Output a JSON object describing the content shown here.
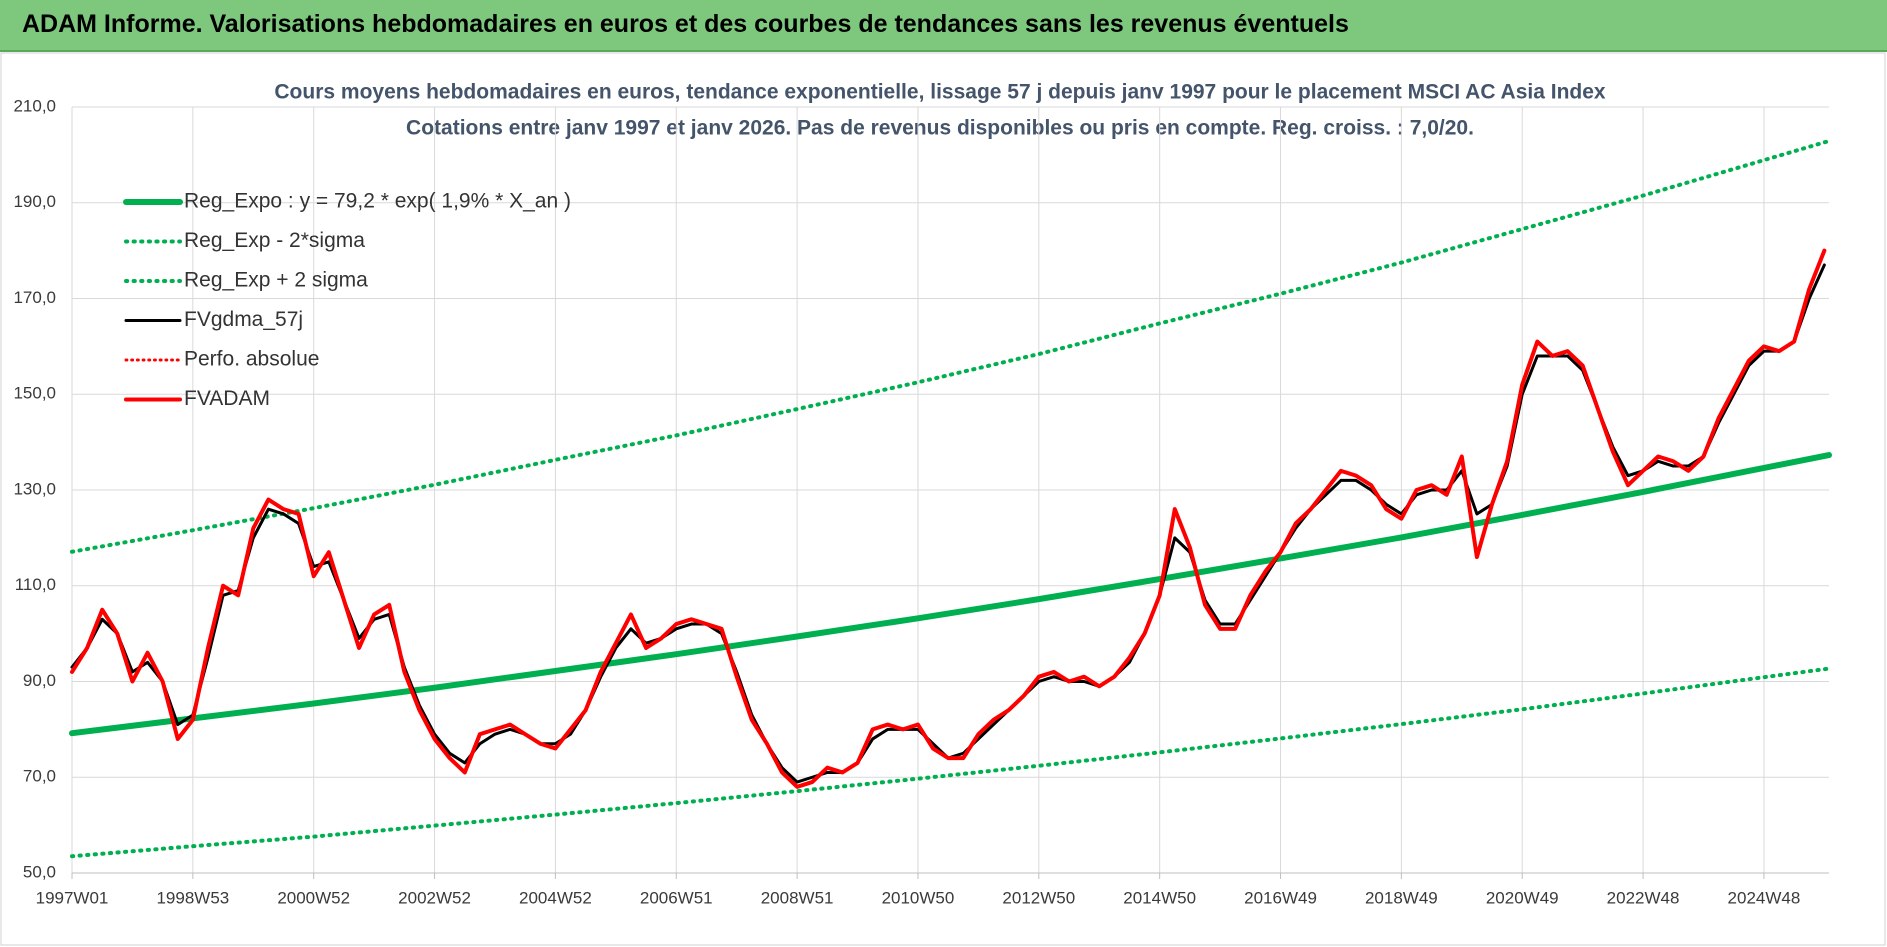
{
  "header": {
    "title": "ADAM Informe. Valorisations hebdomadaires en euros et des courbes de tendances sans les revenus éventuels"
  },
  "chart_data": {
    "type": "line",
    "title": "Cours moyens hebdomadaires en euros, tendance exponentielle, lissage 57 j depuis janv 1997 pour le placement MSCI AC Asia Index",
    "subtitle": "Cotations entre janv 1997 et janv 2026. Pas de revenus disponibles ou pris en compte. Reg. croiss. : 7,0/20.",
    "legend": "top-left",
    "grid": true,
    "xlim": [
      0,
      1512
    ],
    "xticks": [
      {
        "value": 0,
        "label": "1997W01"
      },
      {
        "value": 104,
        "label": "1998W53"
      },
      {
        "value": 208,
        "label": "2000W52"
      },
      {
        "value": 312,
        "label": "2002W52"
      },
      {
        "value": 416,
        "label": "2004W52"
      },
      {
        "value": 520,
        "label": "2006W51"
      },
      {
        "value": 624,
        "label": "2008W51"
      },
      {
        "value": 728,
        "label": "2010W50"
      },
      {
        "value": 832,
        "label": "2012W50"
      },
      {
        "value": 936,
        "label": "2014W50"
      },
      {
        "value": 1040,
        "label": "2016W49"
      },
      {
        "value": 1144,
        "label": "2018W49"
      },
      {
        "value": 1248,
        "label": "2020W49"
      },
      {
        "value": 1352,
        "label": "2022W48"
      },
      {
        "value": 1456,
        "label": "2024W48"
      }
    ],
    "ylim": [
      50,
      210
    ],
    "yticks": [
      {
        "value": 50,
        "label": "50,0"
      },
      {
        "value": 70,
        "label": "70,0"
      },
      {
        "value": 90,
        "label": "90,0"
      },
      {
        "value": 110,
        "label": "110,0"
      },
      {
        "value": 130,
        "label": "130,0"
      },
      {
        "value": 150,
        "label": "150,0"
      },
      {
        "value": 170,
        "label": "170,0"
      },
      {
        "value": 190,
        "label": "190,0"
      },
      {
        "value": 210,
        "label": "210,0"
      }
    ],
    "x": [
      0,
      13,
      26,
      39,
      52,
      65,
      78,
      91,
      104,
      117,
      130,
      143,
      156,
      169,
      182,
      195,
      208,
      221,
      234,
      247,
      260,
      273,
      286,
      299,
      312,
      325,
      338,
      351,
      364,
      377,
      390,
      403,
      416,
      429,
      442,
      455,
      468,
      481,
      494,
      507,
      520,
      533,
      546,
      559,
      572,
      585,
      598,
      611,
      624,
      637,
      650,
      663,
      676,
      689,
      702,
      715,
      728,
      741,
      754,
      767,
      780,
      793,
      806,
      819,
      832,
      845,
      858,
      871,
      884,
      897,
      910,
      923,
      936,
      949,
      962,
      975,
      988,
      1001,
      1014,
      1027,
      1040,
      1053,
      1066,
      1079,
      1092,
      1105,
      1118,
      1131,
      1144,
      1157,
      1170,
      1183,
      1196,
      1209,
      1222,
      1235,
      1248,
      1261,
      1274,
      1287,
      1300,
      1313,
      1326,
      1339,
      1352,
      1365,
      1378,
      1391,
      1404,
      1417,
      1430,
      1443,
      1456,
      1469,
      1482,
      1495,
      1508
    ],
    "series": [
      {
        "name": "Reg_Expo : y = 79,2 * exp( 1,9% *  X_an )",
        "color": "#00b050",
        "style": "solid",
        "width": 6,
        "x": [
          0,
          104,
          208,
          312,
          416,
          520,
          624,
          728,
          832,
          936,
          1040,
          1144,
          1248,
          1352,
          1456,
          1512
        ],
        "values": [
          79.2,
          82.3,
          85.4,
          88.7,
          92.2,
          95.7,
          99.4,
          103.2,
          107.2,
          111.4,
          115.7,
          120.1,
          124.8,
          129.6,
          134.6,
          137.3
        ]
      },
      {
        "name": "Reg_Exp - 2*sigma",
        "color": "#00b050",
        "style": "dotted",
        "width": 4,
        "x": [
          0,
          104,
          208,
          312,
          416,
          520,
          624,
          728,
          832,
          936,
          1040,
          1144,
          1248,
          1352,
          1456,
          1512
        ],
        "values": [
          53.5,
          55.6,
          57.6,
          59.9,
          62.2,
          64.6,
          67.1,
          69.7,
          72.4,
          75.2,
          78.1,
          81.1,
          84.2,
          87.5,
          90.9,
          92.7
        ]
      },
      {
        "name": "Reg_Exp + 2 sigma",
        "color": "#00b050",
        "style": "dotted",
        "width": 4,
        "x": [
          0,
          104,
          208,
          312,
          416,
          520,
          624,
          728,
          832,
          936,
          1040,
          1144,
          1248,
          1352,
          1456,
          1512
        ],
        "values": [
          117.1,
          121.6,
          126.2,
          131.1,
          136.3,
          141.4,
          146.9,
          152.5,
          158.4,
          164.8,
          171.0,
          177.5,
          184.5,
          191.5,
          198.9,
          202.9
        ]
      },
      {
        "name": "FVgdma_57j",
        "color": "#000000",
        "style": "solid",
        "width": 3,
        "values": [
          93,
          97,
          103,
          100,
          92,
          94,
          90,
          81,
          83,
          95,
          108,
          109,
          120,
          126,
          125,
          123,
          114,
          115,
          107,
          99,
          103,
          104,
          93,
          85,
          79,
          75,
          73,
          77,
          79,
          80,
          79,
          77,
          77,
          79,
          84,
          91,
          97,
          101,
          98,
          99,
          101,
          102,
          102,
          100,
          92,
          83,
          77,
          72,
          69,
          70,
          71,
          71,
          73,
          78,
          80,
          80,
          80,
          77,
          74,
          75,
          78,
          81,
          84,
          87,
          90,
          91,
          90,
          90,
          89,
          91,
          94,
          100,
          108,
          120,
          117,
          107,
          102,
          102,
          107,
          112,
          117,
          122,
          126,
          129,
          132,
          132,
          130,
          127,
          125,
          129,
          130,
          130,
          134,
          125,
          127,
          135,
          150,
          158,
          158,
          158,
          155,
          147,
          139,
          133,
          134,
          136,
          135,
          135,
          137,
          144,
          150,
          156,
          159,
          159,
          161,
          170,
          177
        ]
      },
      {
        "name": "Perfo. absolue",
        "color": "#ff0000",
        "style": "dotted",
        "width": 3,
        "x": [],
        "values": []
      },
      {
        "name": "FVADAM",
        "color": "#ff0000",
        "style": "solid",
        "width": 4,
        "values": [
          92,
          97,
          105,
          100,
          90,
          96,
          90,
          78,
          82,
          97,
          110,
          108,
          122,
          128,
          126,
          125,
          112,
          117,
          107,
          97,
          104,
          106,
          92,
          84,
          78,
          74,
          71,
          79,
          80,
          81,
          79,
          77,
          76,
          80,
          84,
          92,
          98,
          104,
          97,
          99,
          102,
          103,
          102,
          101,
          91,
          82,
          77,
          71,
          68,
          69,
          72,
          71,
          73,
          80,
          81,
          80,
          81,
          76,
          74,
          74,
          79,
          82,
          84,
          87,
          91,
          92,
          90,
          91,
          89,
          91,
          95,
          100,
          108,
          126,
          118,
          106,
          101,
          101,
          108,
          113,
          117,
          123,
          126,
          130,
          134,
          133,
          131,
          126,
          124,
          130,
          131,
          129,
          137,
          116,
          127,
          136,
          152,
          161,
          158,
          159,
          156,
          147,
          138,
          131,
          134,
          137,
          136,
          134,
          137,
          145,
          151,
          157,
          160,
          159,
          161,
          172,
          180
        ]
      }
    ]
  }
}
